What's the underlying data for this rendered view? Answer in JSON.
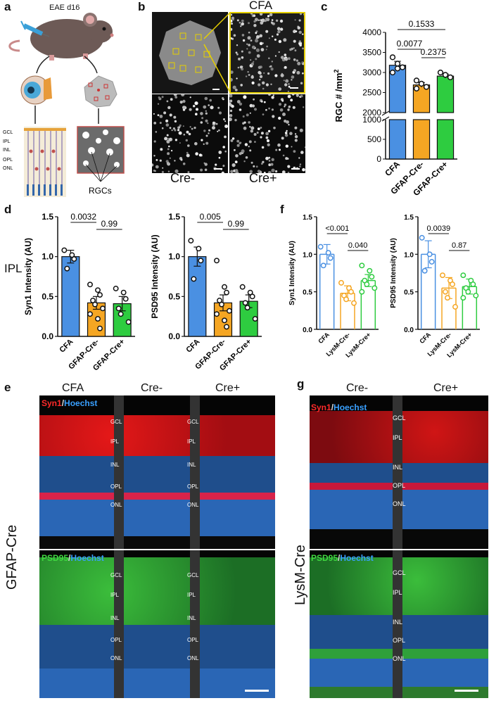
{
  "panels": {
    "a": {
      "label": "a",
      "mouse_label": "EAE d16",
      "layers": [
        "GCL",
        "IPL",
        "INL",
        "OPL",
        "ONL"
      ],
      "rgc_label": "RGCs"
    },
    "b": {
      "label": "b",
      "titles": {
        "cfa": "CFA",
        "cre_minus": "Cre-",
        "cre_plus": "Cre+"
      }
    },
    "c": {
      "label": "c",
      "ylabel": "RGC # /mm",
      "ylabel_sup": "2",
      "pvalues": [
        "0.1533",
        "0.0077",
        "0.2375"
      ]
    },
    "d": {
      "label": "d",
      "side_label": "IPL",
      "pvalues_syn": [
        "0.0032",
        "0.99"
      ],
      "pvalues_psd": [
        "0.005",
        "0.99"
      ]
    },
    "f": {
      "label": "f",
      "pvalues_syn": [
        "<0.001",
        "0.040"
      ],
      "pvalues_psd": [
        "0.0039",
        "0.87"
      ]
    },
    "e": {
      "label": "e",
      "cols": [
        "CFA",
        "Cre-",
        "Cre+"
      ],
      "side": "GFAP-Cre",
      "stain1": {
        "a": "Syn1",
        "sep": "/",
        "b": "Hoechst"
      },
      "stain2": {
        "a": "PSD95",
        "sep": "/",
        "b": "Hoechst"
      },
      "layers_top": [
        "GCL",
        "IPL",
        "INL",
        "OPL",
        "ONL"
      ],
      "layers_bot": [
        "GCL",
        "IPL",
        "INL",
        "OPL",
        "ONL"
      ]
    },
    "g": {
      "label": "g",
      "cols": [
        "Cre-",
        "Cre+"
      ],
      "side": "LysM-Cre",
      "stain1": {
        "a": "Syn1",
        "sep": "/",
        "b": "Hoechst"
      },
      "stain2": {
        "a": "PSD95",
        "sep": "/",
        "b": "Hoechst"
      },
      "layers_top": [
        "GCL",
        "IPL",
        "INL",
        "OPL",
        "ONL"
      ],
      "layers_bot": [
        "GCL",
        "IPL",
        "INL",
        "OPL",
        "ONL"
      ]
    }
  },
  "chart_data": [
    {
      "id": "c",
      "type": "bar",
      "categories": [
        "CFA",
        "GFAP-Cre-",
        "GFAP-Cre+"
      ],
      "values": [
        3180,
        2690,
        2910
      ],
      "errors": [
        100,
        60,
        50
      ],
      "colors": [
        "#4a90e2",
        "#f5a623",
        "#2ecc40"
      ],
      "points": [
        [
          3380,
          3220,
          3130,
          3000,
          3100
        ],
        [
          2800,
          2720,
          2640,
          2600
        ],
        [
          3000,
          2940,
          2880
        ]
      ],
      "ylabel": "RGC # /mm2",
      "broken_axis": true,
      "ticks_lower": [
        0,
        500,
        1000
      ],
      "ticks_upper": [
        2000,
        2500,
        3000,
        3500,
        4000
      ],
      "pvalues": [
        {
          "pair": [
            "CFA",
            "GFAP-Cre+"
          ],
          "p": "0.1533"
        },
        {
          "pair": [
            "CFA",
            "GFAP-Cre-"
          ],
          "p": "0.0077"
        },
        {
          "pair": [
            "GFAP-Cre-",
            "GFAP-Cre+"
          ],
          "p": "0.2375"
        }
      ]
    },
    {
      "id": "d-syn1",
      "type": "bar",
      "categories": [
        "CFA",
        "GFAP-Cre-",
        "GFAP-Cre+"
      ],
      "values": [
        1.0,
        0.42,
        0.41
      ],
      "errors": [
        0.08,
        0.08,
        0.09
      ],
      "colors": [
        "#4a90e2",
        "#f5a623",
        "#2ecc40"
      ],
      "points": [
        [
          1.08,
          1.02,
          0.97,
          0.85
        ],
        [
          0.65,
          0.58,
          0.52,
          0.45,
          0.4,
          0.35,
          0.28,
          0.22,
          0.1
        ],
        [
          0.6,
          0.55,
          0.47,
          0.35,
          0.28,
          0.18
        ]
      ],
      "ylabel": "Syn1 Intensity (AU)",
      "ylim": [
        0,
        1.5
      ],
      "ticks": [
        0.0,
        0.5,
        1.0,
        1.5
      ],
      "pvalues": [
        {
          "pair": [
            "CFA",
            "GFAP-Cre-"
          ],
          "p": "0.0032"
        },
        {
          "pair": [
            "GFAP-Cre-",
            "GFAP-Cre+"
          ],
          "p": "0.99"
        }
      ]
    },
    {
      "id": "d-psd95",
      "type": "bar",
      "categories": [
        "CFA",
        "GFAP-Cre-",
        "GFAP-Cre+"
      ],
      "values": [
        1.0,
        0.42,
        0.44
      ],
      "errors": [
        0.12,
        0.1,
        0.08
      ],
      "colors": [
        "#4a90e2",
        "#f5a623",
        "#2ecc40"
      ],
      "points": [
        [
          1.2,
          1.1,
          0.95,
          0.72
        ],
        [
          0.95,
          0.62,
          0.55,
          0.45,
          0.4,
          0.32,
          0.28,
          0.2,
          0.12
        ],
        [
          0.62,
          0.55,
          0.5,
          0.42,
          0.36,
          0.22
        ]
      ],
      "ylabel": "PSD95 Intensity (AU)",
      "ylim": [
        0,
        1.5
      ],
      "ticks": [
        0.0,
        0.5,
        1.0,
        1.5
      ],
      "pvalues": [
        {
          "pair": [
            "CFA",
            "GFAP-Cre-"
          ],
          "p": "0.005"
        },
        {
          "pair": [
            "GFAP-Cre-",
            "GFAP-Cre+"
          ],
          "p": "0.99"
        }
      ]
    },
    {
      "id": "f-syn1",
      "type": "bar",
      "categories": [
        "CFA",
        "LysM-Cre-",
        "LysM-Cre+"
      ],
      "values": [
        1.0,
        0.48,
        0.65
      ],
      "errors": [
        0.13,
        0.1,
        0.08
      ],
      "colors": [
        "#4a90e2",
        "#f5a623",
        "#2ecc40"
      ],
      "hollow": true,
      "points": [
        [
          1.1,
          1.02,
          0.95,
          0.85
        ],
        [
          0.62,
          0.55,
          0.5,
          0.45,
          0.4,
          0.35
        ],
        [
          0.85,
          0.78,
          0.7,
          0.65,
          0.6,
          0.55,
          0.5
        ]
      ],
      "ylabel": "Syn1 Intensity (AU)",
      "ylim": [
        0,
        1.5
      ],
      "ticks": [
        0.0,
        0.5,
        1.0,
        1.5
      ],
      "pvalues": [
        {
          "pair": [
            "CFA",
            "LysM-Cre-"
          ],
          "p": "<0.001"
        },
        {
          "pair": [
            "LysM-Cre-",
            "LysM-Cre+"
          ],
          "p": "0.040"
        }
      ]
    },
    {
      "id": "f-psd95",
      "type": "bar",
      "categories": [
        "CFA",
        "LysM-Cre-",
        "LysM-Cre+"
      ],
      "values": [
        1.0,
        0.55,
        0.57
      ],
      "errors": [
        0.18,
        0.14,
        0.1
      ],
      "colors": [
        "#4a90e2",
        "#f5a623",
        "#2ecc40"
      ],
      "hollow": true,
      "points": [
        [
          1.22,
          1.0,
          0.9,
          0.78
        ],
        [
          0.72,
          0.65,
          0.6,
          0.5,
          0.42,
          0.3
        ],
        [
          0.72,
          0.65,
          0.6,
          0.55,
          0.5,
          0.45,
          0.42
        ]
      ],
      "ylabel": "PSD95 Intensity (AU)",
      "ylim": [
        0,
        1.5
      ],
      "ticks": [
        0.0,
        0.5,
        1.0,
        1.5
      ],
      "pvalues": [
        {
          "pair": [
            "CFA",
            "LysM-Cre-"
          ],
          "p": "0.0039"
        },
        {
          "pair": [
            "LysM-Cre-",
            "LysM-Cre+"
          ],
          "p": "0.87"
        }
      ]
    }
  ]
}
